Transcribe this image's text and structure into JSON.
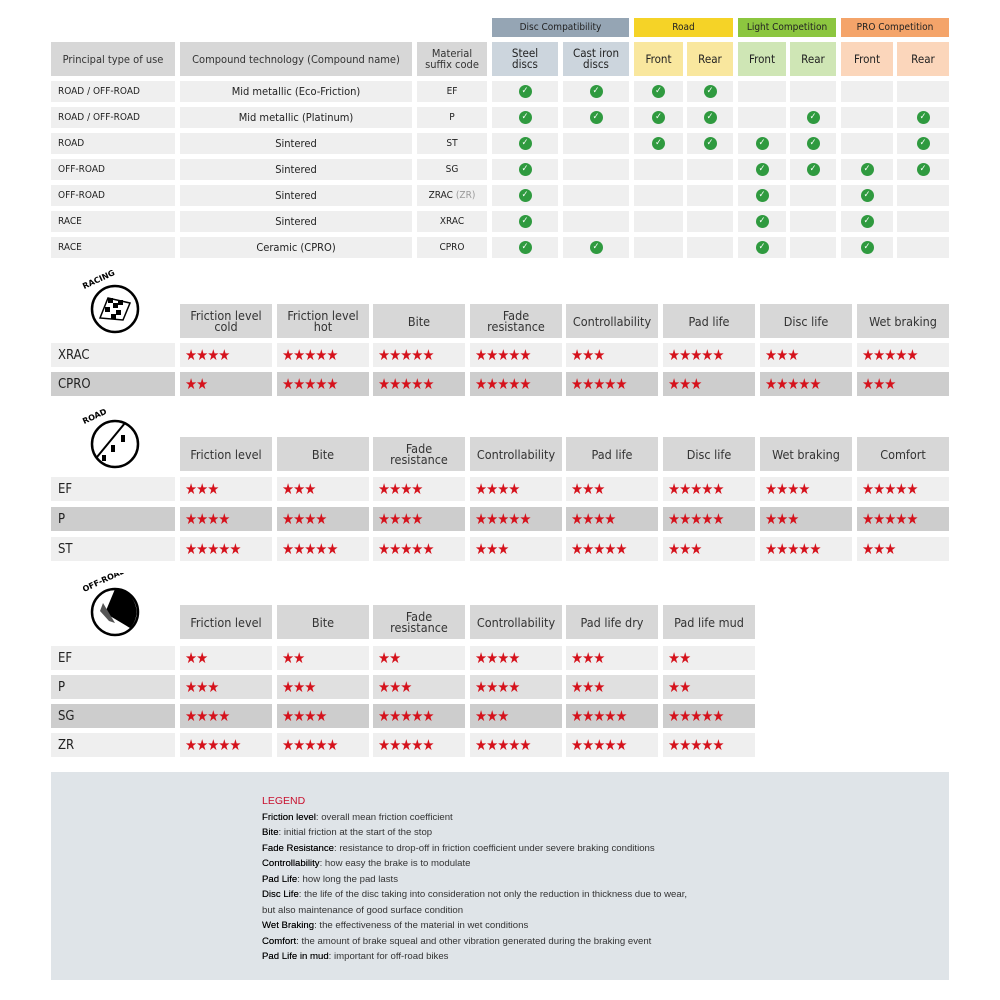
{
  "compat": {
    "groups": [
      {
        "label": "Disc Compatibility",
        "color": "#95a5b4",
        "sub": "#ccd5dd",
        "cols": [
          "Steel discs",
          "Cast iron discs"
        ]
      },
      {
        "label": "Road",
        "color": "#f5d327",
        "sub": "#f9e79e",
        "cols": [
          "Front",
          "Rear"
        ]
      },
      {
        "label": "Light Competition",
        "color": "#8cc63f",
        "sub": "#cfe6b5",
        "cols": [
          "Front",
          "Rear"
        ]
      },
      {
        "label": "PRO Competition",
        "color": "#f4a46a",
        "sub": "#fbd6bb",
        "cols": [
          "Front",
          "Rear"
        ]
      }
    ],
    "headers": [
      "Principal type of use",
      "Compound technology (Compound name)",
      "Material suffix code"
    ],
    "rows": [
      {
        "use": "ROAD / OFF-ROAD",
        "compound": "Mid metallic (Eco-Friction)",
        "code": "EF",
        "code_extra": "",
        "checks": [
          1,
          1,
          1,
          1,
          0,
          0,
          0,
          0
        ]
      },
      {
        "use": "ROAD / OFF-ROAD",
        "compound": "Mid metallic (Platinum)",
        "code": "P",
        "code_extra": "",
        "checks": [
          1,
          1,
          1,
          1,
          0,
          1,
          0,
          1
        ]
      },
      {
        "use": "ROAD",
        "compound": "Sintered",
        "code": "ST",
        "code_extra": "",
        "checks": [
          1,
          0,
          1,
          1,
          1,
          1,
          0,
          1
        ]
      },
      {
        "use": "OFF-ROAD",
        "compound": "Sintered",
        "code": "SG",
        "code_extra": "",
        "checks": [
          1,
          0,
          0,
          0,
          1,
          1,
          1,
          1
        ]
      },
      {
        "use": "OFF-ROAD",
        "compound": "Sintered",
        "code": "ZRAC",
        "code_extra": "(ZR)",
        "checks": [
          1,
          0,
          0,
          0,
          1,
          0,
          1,
          0
        ]
      },
      {
        "use": "RACE",
        "compound": "Sintered",
        "code": "XRAC",
        "code_extra": "",
        "checks": [
          1,
          0,
          0,
          0,
          1,
          0,
          1,
          0
        ]
      },
      {
        "use": "RACE",
        "compound": "Ceramic (CPRO)",
        "code": "CPRO",
        "code_extra": "",
        "checks": [
          1,
          1,
          0,
          0,
          1,
          0,
          1,
          0
        ]
      }
    ]
  },
  "ratings": [
    {
      "icon": "racing-flag-icon",
      "icon_label": "RACING",
      "headers": [
        "Friction level cold",
        "Friction level hot",
        "Bite",
        "Fade resistance",
        "Controllability",
        "Pad life",
        "Disc life",
        "Wet braking"
      ],
      "rows": [
        {
          "code": "XRAC",
          "shade": "light",
          "stars": [
            4,
            5,
            5,
            5,
            3,
            5,
            3,
            5
          ]
        },
        {
          "code": "CPRO",
          "shade": "dark",
          "stars": [
            2,
            5,
            5,
            5,
            5,
            3,
            5,
            3
          ]
        }
      ]
    },
    {
      "icon": "road-icon",
      "icon_label": "ROAD",
      "headers": [
        "Friction level",
        "Bite",
        "Fade resistance",
        "Controllability",
        "Pad life",
        "Disc life",
        "Wet braking",
        "Comfort"
      ],
      "rows": [
        {
          "code": "EF",
          "shade": "light",
          "stars": [
            3,
            3,
            4,
            4,
            3,
            5,
            4,
            5
          ]
        },
        {
          "code": "P",
          "shade": "dark",
          "stars": [
            4,
            4,
            4,
            5,
            4,
            5,
            3,
            5
          ]
        },
        {
          "code": "ST",
          "shade": "light",
          "stars": [
            5,
            5,
            5,
            3,
            5,
            3,
            5,
            3
          ]
        }
      ]
    },
    {
      "icon": "off-road-icon",
      "icon_label": "OFF-ROAD",
      "headers": [
        "Friction level",
        "Bite",
        "Fade resistance",
        "Controllability",
        "Pad life dry",
        "Pad life mud"
      ],
      "rows": [
        {
          "code": "EF",
          "shade": "light",
          "stars": [
            2,
            2,
            2,
            4,
            3,
            2
          ]
        },
        {
          "code": "P",
          "shade": "mid",
          "stars": [
            3,
            3,
            3,
            4,
            3,
            2
          ]
        },
        {
          "code": "SG",
          "shade": "dark",
          "stars": [
            4,
            4,
            5,
            3,
            5,
            5
          ]
        },
        {
          "code": "ZR",
          "shade": "light",
          "stars": [
            5,
            5,
            5,
            5,
            5,
            5
          ]
        }
      ]
    }
  ],
  "legend": {
    "title": "LEGEND",
    "items": [
      {
        "term": "Friction level",
        "desc": ": overall mean friction coefficient"
      },
      {
        "term": "Bite",
        "desc": ": initial friction at the start of the stop"
      },
      {
        "term": "Fade Resistance",
        "desc": ": resistance to drop-off in friction coefficient under severe braking conditions"
      },
      {
        "term": "Controllability",
        "desc": ": how easy the brake is to modulate"
      },
      {
        "term": "Pad Life",
        "desc": ": how long the pad lasts"
      },
      {
        "term": "Disc Life",
        "desc": ": the life of the disc taking into consideration not only the reduction in thickness due to wear,"
      },
      {
        "term": "",
        "desc": "but also maintenance of good surface condition"
      },
      {
        "term": "Wet Braking",
        "desc": ": the effectiveness of the material in wet conditions"
      },
      {
        "term": "Comfort",
        "desc": ": the amount of brake squeal and other vibration generated during the braking event"
      },
      {
        "term": "Pad Life in mud",
        "desc": ": important for off-road bikes"
      }
    ]
  }
}
